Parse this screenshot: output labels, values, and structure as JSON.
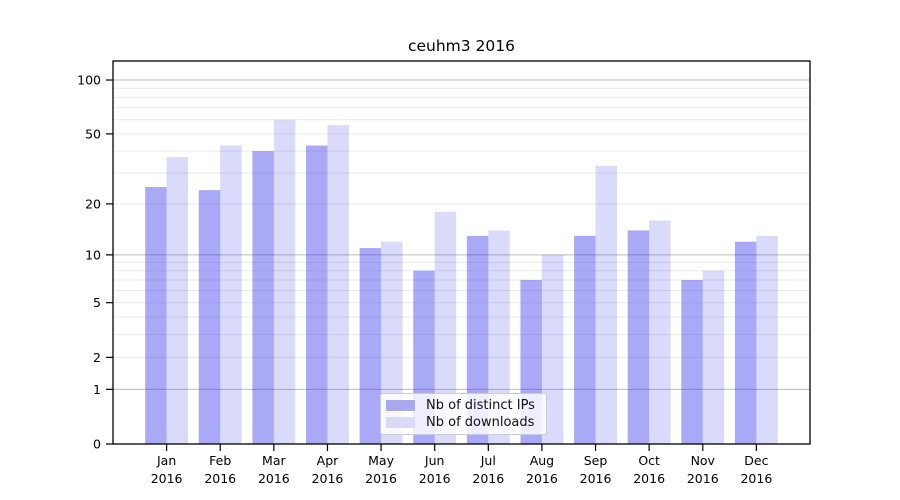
{
  "chart_data": {
    "type": "bar",
    "title": "ceuhm3 2016",
    "categories": [
      "Jan 2016",
      "Feb 2016",
      "Mar 2016",
      "Apr 2016",
      "May 2016",
      "Jun 2016",
      "Jul 2016",
      "Aug 2016",
      "Sep 2016",
      "Oct 2016",
      "Nov 2016",
      "Dec 2016"
    ],
    "series": [
      {
        "name": "Nb of distinct IPs",
        "values": [
          25,
          24,
          40,
          43,
          11,
          8,
          13,
          7,
          13,
          14,
          7,
          12
        ],
        "fill": "rgba(45,45,235,0.41)",
        "solid_color": "#a9a9f1"
      },
      {
        "name": "Nb of downloads",
        "values": [
          37,
          43,
          60,
          56,
          12,
          18,
          14,
          10,
          33,
          16,
          8,
          13
        ],
        "fill": "rgba(45,45,235,0.175)",
        "solid_color": "#dadaf8"
      }
    ],
    "yscale": "log1p",
    "ylim": [
      0,
      127
    ],
    "yticks": [
      0,
      1,
      2,
      5,
      10,
      20,
      50,
      100
    ],
    "major_gridlines": [
      1,
      10,
      100
    ],
    "minor_gridlines": [
      2,
      3,
      4,
      5,
      6,
      7,
      8,
      9,
      20,
      30,
      40,
      50,
      60,
      70,
      80,
      90
    ],
    "grid": "on",
    "legend_position": "lower center",
    "colors": {
      "major_grid": "#bcbcbc",
      "minor_grid": "#eaeaea",
      "axis": "#000000"
    }
  }
}
